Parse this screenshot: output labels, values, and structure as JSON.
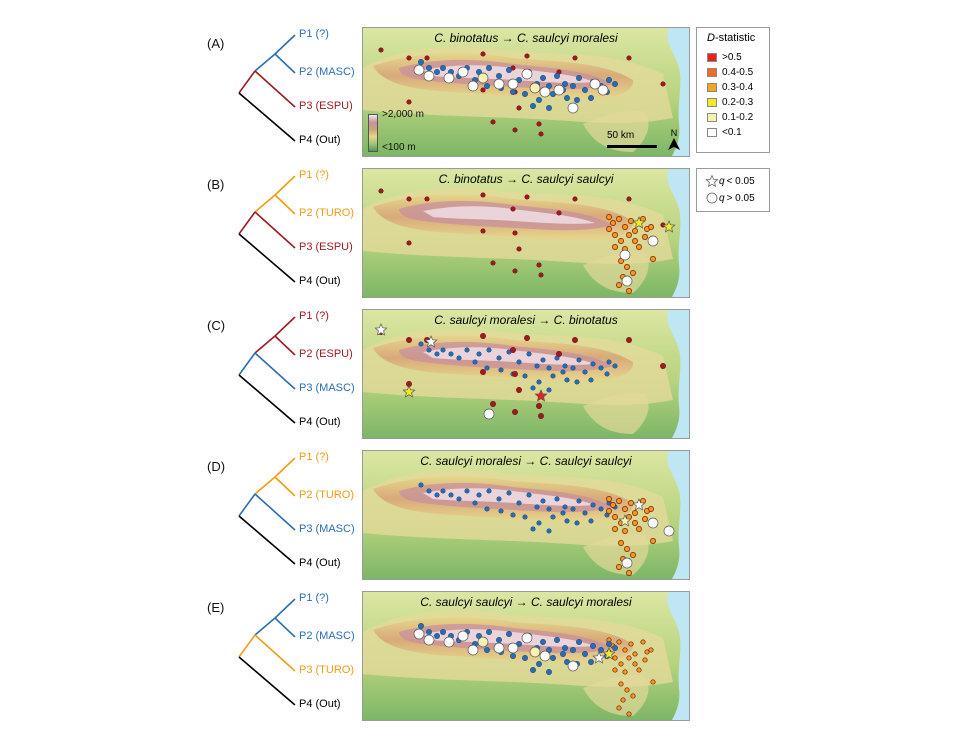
{
  "legend": {
    "title_italic": "D",
    "title_rest": "-statistic",
    "bins": [
      {
        "label": ">0.5",
        "color": "#e8211d"
      },
      {
        "label": "0.4-0.5",
        "color": "#f26b1f"
      },
      {
        "label": "0.3-0.4",
        "color": "#f5a623"
      },
      {
        "label": "0.2-0.3",
        "color": "#f3e92a"
      },
      {
        "label": "0.1-0.2",
        "color": "#f6f2b5"
      },
      {
        "label": "<0.1",
        "color": "#ffffff"
      }
    ],
    "significance": [
      {
        "symbol": "star",
        "q_label": "q",
        "rest": " < 0.05"
      },
      {
        "symbol": "circle",
        "q_label": "q",
        "rest": " > 0.05"
      }
    ]
  },
  "elevation_legend": {
    "high": ">2,000 m",
    "low": "<100 m"
  },
  "scale": {
    "label": "50 km",
    "north": "N"
  },
  "colors": {
    "blue": "#2a6db5",
    "red": "#9e1b22",
    "orange": "#f39c12",
    "black": "#000000",
    "sea": "#bfe6f3"
  },
  "panels": [
    {
      "letter": "(A)",
      "title": "C. binotatus → C. saulcyi moralesi",
      "tips": [
        {
          "label": "P1 (?)",
          "color": "#2a6db5"
        },
        {
          "label": "P2 (MASC)",
          "color": "#2a6db5"
        },
        {
          "label": "P3 (ESPU)",
          "color": "#9e1b22"
        },
        {
          "label": "P4 (Out)",
          "color": "#000000"
        }
      ],
      "p12_color": "#2a6db5",
      "p123_color": "#9e1b22",
      "popsA": "blue",
      "popsB": "red",
      "tests": [
        {
          "loc": "w1",
          "bin": 5,
          "sig": false
        },
        {
          "loc": "w2",
          "bin": 5,
          "sig": false
        },
        {
          "loc": "w3",
          "bin": 5,
          "sig": false
        },
        {
          "loc": "w4",
          "bin": 5,
          "sig": false
        },
        {
          "loc": "w5",
          "bin": 5,
          "sig": false
        },
        {
          "loc": "w6",
          "bin": 4,
          "sig": false
        },
        {
          "loc": "w7",
          "bin": 5,
          "sig": false
        },
        {
          "loc": "w8",
          "bin": 5,
          "sig": false
        },
        {
          "loc": "c1",
          "bin": 5,
          "sig": false
        },
        {
          "loc": "c2",
          "bin": 4,
          "sig": false
        },
        {
          "loc": "c3",
          "bin": 5,
          "sig": false
        },
        {
          "loc": "c4",
          "bin": 5,
          "sig": false
        },
        {
          "loc": "e1",
          "bin": 5,
          "sig": false
        },
        {
          "loc": "e2",
          "bin": 5,
          "sig": false
        },
        {
          "loc": "e3",
          "bin": 5,
          "sig": false
        }
      ]
    },
    {
      "letter": "(B)",
      "title": "C. binotatus → C. saulcyi saulcyi",
      "tips": [
        {
          "label": "P1 (?)",
          "color": "#f39c12"
        },
        {
          "label": "P2 (TURO)",
          "color": "#f39c12"
        },
        {
          "label": "P3 (ESPU)",
          "color": "#9e1b22"
        },
        {
          "label": "P4 (Out)",
          "color": "#000000"
        }
      ],
      "p12_color": "#f39c12",
      "p123_color": "#9e1b22",
      "popsA": "orange",
      "popsB": "red",
      "tests": [
        {
          "loc": "t1",
          "bin": 3,
          "sig": true
        },
        {
          "loc": "t2",
          "bin": 3,
          "sig": true
        },
        {
          "loc": "t3",
          "bin": 5,
          "sig": false
        },
        {
          "loc": "t4",
          "bin": 5,
          "sig": false
        },
        {
          "loc": "t5",
          "bin": 5,
          "sig": false
        }
      ]
    },
    {
      "letter": "(C)",
      "title": "C. saulcyi moralesi → C. binotatus",
      "tips": [
        {
          "label": "P1 (?)",
          "color": "#9e1b22"
        },
        {
          "label": "P2 (ESPU)",
          "color": "#9e1b22"
        },
        {
          "label": "P3 (MASC)",
          "color": "#2a6db5"
        },
        {
          "label": "P4 (Out)",
          "color": "#000000"
        }
      ],
      "p12_color": "#9e1b22",
      "p123_color": "#2a6db5",
      "popsA": "red",
      "popsB": "blue",
      "tests": [
        {
          "loc": "r1",
          "bin": 5,
          "sig": true
        },
        {
          "loc": "r2",
          "bin": 5,
          "sig": true
        },
        {
          "loc": "r3",
          "bin": 3,
          "sig": true
        },
        {
          "loc": "r4",
          "bin": 0,
          "sig": true
        },
        {
          "loc": "r5",
          "bin": 5,
          "sig": false
        }
      ]
    },
    {
      "letter": "(D)",
      "title": "C. saulcyi moralesi → C. saulcyi saulcyi",
      "tips": [
        {
          "label": "P1 (?)",
          "color": "#f39c12"
        },
        {
          "label": "P2 (TURO)",
          "color": "#f39c12"
        },
        {
          "label": "P3 (MASC)",
          "color": "#2a6db5"
        },
        {
          "label": "P4 (Out)",
          "color": "#000000"
        }
      ],
      "p12_color": "#f39c12",
      "p123_color": "#2a6db5",
      "popsA": "orange",
      "popsB": "blue",
      "tests": [
        {
          "loc": "t1",
          "bin": 5,
          "sig": true
        },
        {
          "loc": "t6",
          "bin": 5,
          "sig": false
        },
        {
          "loc": "t3",
          "bin": 5,
          "sig": false
        },
        {
          "loc": "t7",
          "bin": 4,
          "sig": true
        },
        {
          "loc": "t5",
          "bin": 5,
          "sig": false
        }
      ]
    },
    {
      "letter": "(E)",
      "title": "C. saulcyi saulcyi → C. saulcyi moralesi",
      "tips": [
        {
          "label": "P1 (?)",
          "color": "#2a6db5"
        },
        {
          "label": "P2 (MASC)",
          "color": "#2a6db5"
        },
        {
          "label": "P3 (TURO)",
          "color": "#f39c12"
        },
        {
          "label": "P4 (Out)",
          "color": "#000000"
        }
      ],
      "p12_color": "#2a6db5",
      "p123_color": "#f39c12",
      "popsA": "blue",
      "popsB": "orange",
      "tests": [
        {
          "loc": "w1",
          "bin": 5,
          "sig": false
        },
        {
          "loc": "w2",
          "bin": 5,
          "sig": false
        },
        {
          "loc": "w3",
          "bin": 5,
          "sig": false
        },
        {
          "loc": "w4",
          "bin": 5,
          "sig": false
        },
        {
          "loc": "w5",
          "bin": 5,
          "sig": false
        },
        {
          "loc": "w6",
          "bin": 4,
          "sig": false
        },
        {
          "loc": "w7",
          "bin": 5,
          "sig": false
        },
        {
          "loc": "w8",
          "bin": 5,
          "sig": false
        },
        {
          "loc": "c1",
          "bin": 5,
          "sig": false
        },
        {
          "loc": "c2",
          "bin": 4,
          "sig": false
        },
        {
          "loc": "c3",
          "bin": 5,
          "sig": false
        },
        {
          "loc": "e4",
          "bin": 5,
          "sig": true
        },
        {
          "loc": "e5",
          "bin": 3,
          "sig": true
        },
        {
          "loc": "e6",
          "bin": 5,
          "sig": false
        }
      ]
    }
  ]
}
